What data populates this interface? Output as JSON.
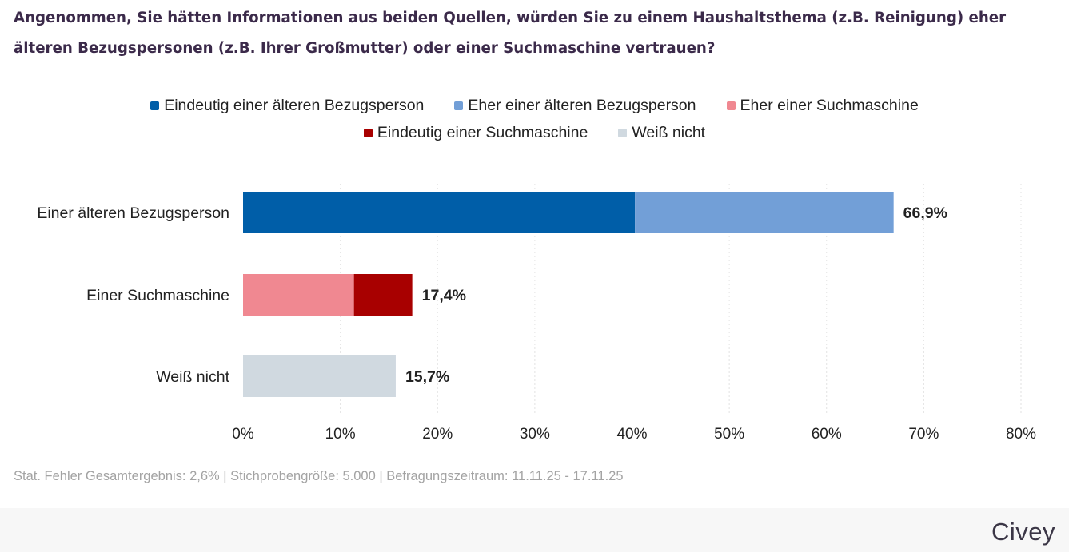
{
  "title": "Angenommen, Sie hätten Informationen aus beiden Quellen, würden Sie zu einem Haushaltsthema (z.B. Reinigung) eher älteren Bezugspersonen (z.B. Ihrer Großmutter) oder einer Suchmaschine vertrauen?",
  "legend": {
    "row1": [
      {
        "label": "Eindeutig einer älteren Bezugsperson",
        "color": "#005ea8"
      },
      {
        "label": "Eher einer älteren Bezugsperson",
        "color": "#729fd7"
      },
      {
        "label": "Eher einer Suchmaschine",
        "color": "#f08891"
      }
    ],
    "row2": [
      {
        "label": "Eindeutig einer Suchmaschine",
        "color": "#a80000"
      },
      {
        "label": "Weiß nicht",
        "color": "#d0d9e0"
      }
    ]
  },
  "chart_data": {
    "type": "bar",
    "orientation": "horizontal",
    "stacked": true,
    "categories": [
      "Einer älteren Bezugsperson",
      "Einer Suchmaschine",
      "Weiß nicht"
    ],
    "series": [
      {
        "name": "Eindeutig einer älteren Bezugsperson",
        "color": "#005ea8",
        "values": [
          40.3,
          0,
          0
        ]
      },
      {
        "name": "Eher einer älteren Bezugsperson",
        "color": "#729fd7",
        "values": [
          26.6,
          0,
          0
        ]
      },
      {
        "name": "Eher einer Suchmaschine",
        "color": "#f08891",
        "values": [
          0,
          11.4,
          0
        ]
      },
      {
        "name": "Eindeutig einer Suchmaschine",
        "color": "#a80000",
        "values": [
          0,
          6.0,
          0
        ]
      },
      {
        "name": "Weiß nicht",
        "color": "#d0d9e0",
        "values": [
          0,
          0,
          15.7
        ]
      }
    ],
    "totals": [
      66.9,
      17.4,
      15.7
    ],
    "total_labels": [
      "66,9%",
      "17,4%",
      "15,7%"
    ],
    "xlim": [
      0,
      80
    ],
    "ticks": [
      0,
      10,
      20,
      30,
      40,
      50,
      60,
      70,
      80
    ],
    "tick_labels": [
      "0%",
      "10%",
      "20%",
      "30%",
      "40%",
      "50%",
      "60%",
      "70%",
      "80%"
    ],
    "gridlines": true,
    "legend_position": "top-center"
  },
  "footnote": "Stat. Fehler Gesamtergebnis: 2,6% | Stichprobengröße: 5.000 | Befragungszeitraum: 11.11.25 - 17.11.25",
  "brand": "Civey"
}
